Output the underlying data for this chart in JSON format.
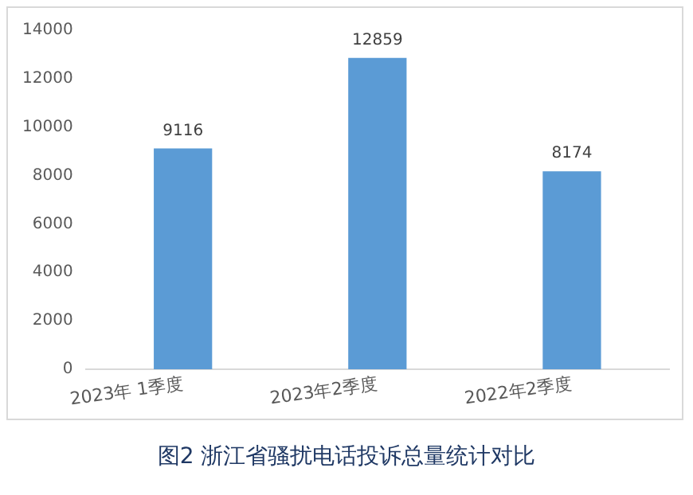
{
  "chart_data": {
    "type": "bar",
    "title": "图2 浙江省骚扰电话投诉总量统计对比",
    "categories": [
      "2023年 1季度",
      "2023年2季度",
      "2022年2季度"
    ],
    "values": [
      9116,
      12859,
      8174
    ],
    "color": "#5b9bd5",
    "ylim": [
      0,
      14000
    ],
    "yticks": [
      0,
      2000,
      4000,
      6000,
      8000,
      10000,
      12000,
      14000
    ],
    "grid": false,
    "data_labels": true
  }
}
